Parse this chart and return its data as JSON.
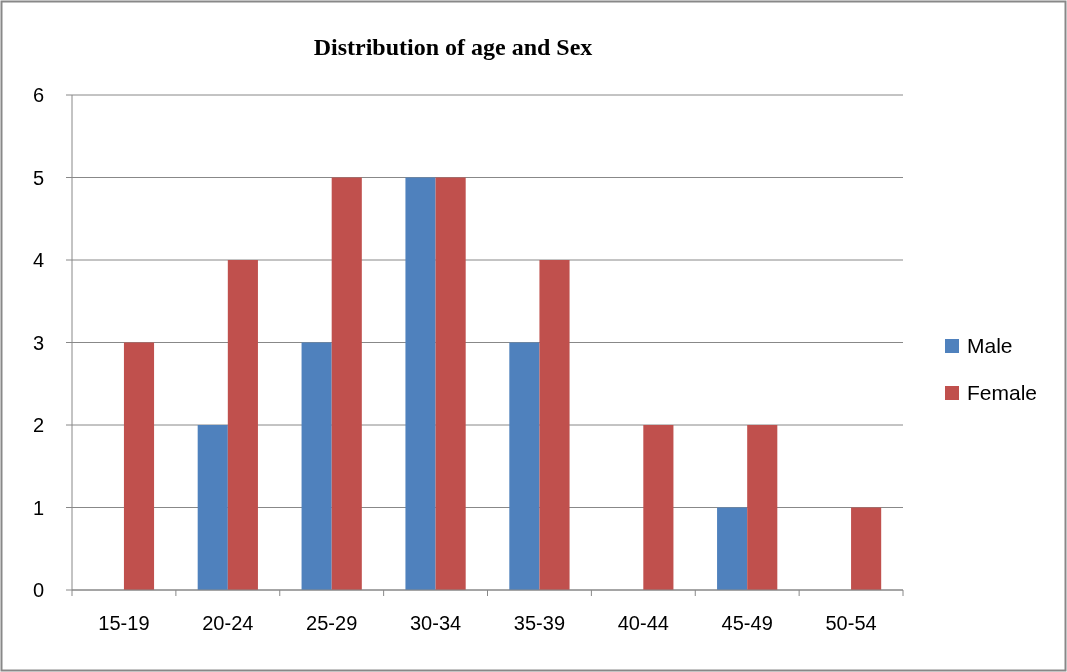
{
  "chart_data": {
    "type": "bar",
    "title": "Distribution of age and Sex",
    "categories": [
      "15-19",
      "20-24",
      "25-29",
      "30-34",
      "35-39",
      "40-44",
      "45-49",
      "50-54"
    ],
    "series": [
      {
        "name": "Male",
        "color": "#4f81bd",
        "values": [
          0,
          2,
          3,
          5,
          3,
          0,
          1,
          0
        ]
      },
      {
        "name": "Female",
        "color": "#c0504d",
        "values": [
          3,
          4,
          5,
          5,
          4,
          2,
          2,
          1
        ]
      }
    ],
    "ylim": [
      0,
      6
    ],
    "yticks": [
      0,
      1,
      2,
      3,
      4,
      5,
      6
    ],
    "grid": "y",
    "legend": "right"
  }
}
